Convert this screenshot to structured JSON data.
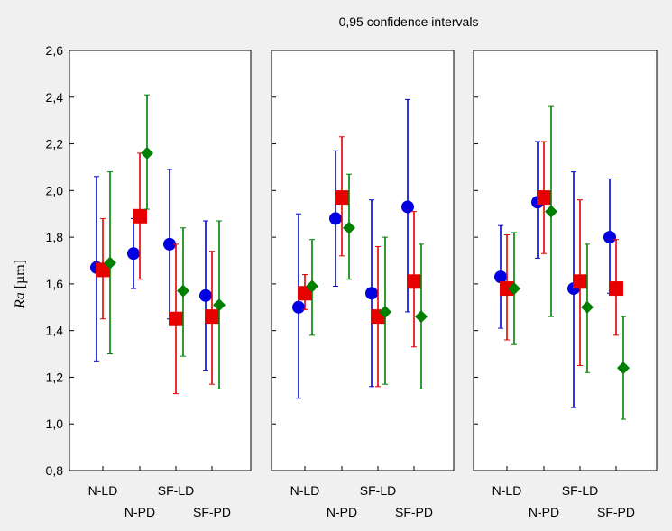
{
  "chart_data": {
    "type": "scatter",
    "title": "0,95 confidence intervals",
    "ylabel_var": "Ra",
    "ylabel_unit": " [µm]",
    "ylim": [
      0.8,
      2.6
    ],
    "yticks": [
      "0,8",
      "1,0",
      "1,2",
      "1,4",
      "1,6",
      "1,8",
      "2,0",
      "2,2",
      "2,4",
      "2,6"
    ],
    "categories": [
      "N-LD",
      "N-PD",
      "SF-LD",
      "SF-PD"
    ],
    "series_colors": [
      "#0000e0",
      "#e60000",
      "#008000"
    ],
    "series_markers": [
      "circle",
      "square",
      "diamond"
    ],
    "panels": [
      {
        "series": [
          {
            "values": [
              1.67,
              1.73,
              1.77,
              1.55
            ],
            "low": [
              1.27,
              1.58,
              1.45,
              1.23
            ],
            "high": [
              2.06,
              1.88,
              2.09,
              1.87
            ]
          },
          {
            "values": [
              1.66,
              1.89,
              1.45,
              1.46
            ],
            "low": [
              1.45,
              1.62,
              1.13,
              1.17
            ],
            "high": [
              1.88,
              2.16,
              1.77,
              1.74
            ]
          },
          {
            "values": [
              1.69,
              2.16,
              1.57,
              1.51
            ],
            "low": [
              1.3,
              1.92,
              1.29,
              1.15
            ],
            "high": [
              2.08,
              2.41,
              1.84,
              1.87
            ]
          }
        ]
      },
      {
        "series": [
          {
            "values": [
              1.5,
              1.88,
              1.56,
              1.93
            ],
            "low": [
              1.11,
              1.59,
              1.16,
              1.48
            ],
            "high": [
              1.9,
              2.17,
              1.96,
              2.39
            ]
          },
          {
            "values": [
              1.56,
              1.97,
              1.46,
              1.61
            ],
            "low": [
              1.49,
              1.72,
              1.16,
              1.33
            ],
            "high": [
              1.64,
              2.23,
              1.76,
              1.91
            ]
          },
          {
            "values": [
              1.59,
              1.84,
              1.48,
              1.46
            ],
            "low": [
              1.38,
              1.62,
              1.17,
              1.15
            ],
            "high": [
              1.79,
              2.07,
              1.8,
              1.77
            ]
          }
        ]
      },
      {
        "series": [
          {
            "values": [
              1.63,
              1.95,
              1.58,
              1.8
            ],
            "low": [
              1.41,
              1.71,
              1.07,
              1.56
            ],
            "high": [
              1.85,
              2.21,
              2.08,
              2.05
            ]
          },
          {
            "values": [
              1.58,
              1.97,
              1.61,
              1.58
            ],
            "low": [
              1.36,
              1.73,
              1.25,
              1.38
            ],
            "high": [
              1.81,
              2.21,
              1.96,
              1.79
            ]
          },
          {
            "values": [
              1.58,
              1.91,
              1.5,
              1.24
            ],
            "low": [
              1.34,
              1.46,
              1.22,
              1.02
            ],
            "high": [
              1.82,
              2.36,
              1.77,
              1.46
            ]
          }
        ]
      }
    ]
  }
}
